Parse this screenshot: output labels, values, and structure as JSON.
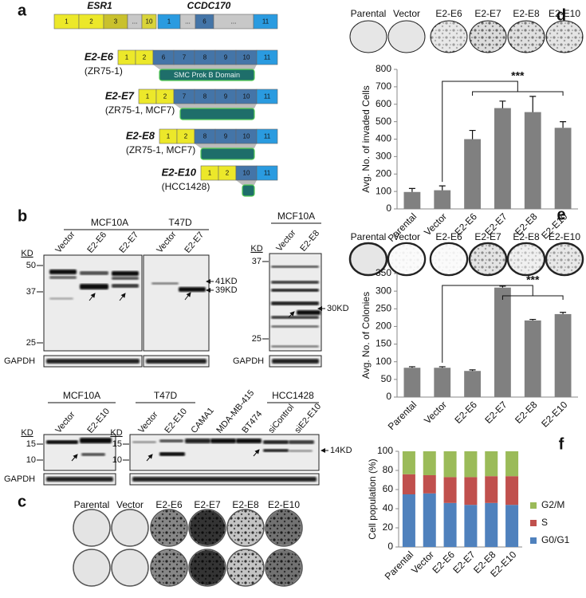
{
  "panels": {
    "a": {
      "letter": "a",
      "genes": [
        "ESR1",
        "CCDC170"
      ],
      "esr1_exons": [
        "1",
        "2",
        "3",
        "...",
        "10"
      ],
      "ccdc170_exons": [
        "1",
        "...",
        "6",
        "...",
        "11"
      ],
      "fusions": [
        {
          "name": "E2-E6",
          "cell_lines": "(ZR75-1)",
          "esr1_exons": [
            "1",
            "2"
          ],
          "ccdc170_exons": [
            "6",
            "7",
            "8",
            "9",
            "10",
            "11"
          ],
          "domain": "SMC Prok B Domain"
        },
        {
          "name": "E2-E7",
          "cell_lines": "(ZR75-1, MCF7)",
          "esr1_exons": [
            "1",
            "2"
          ],
          "ccdc170_exons": [
            "7",
            "8",
            "9",
            "10",
            "11"
          ]
        },
        {
          "name": "E2-E8",
          "cell_lines": "(ZR75-1, MCF7)",
          "esr1_exons": [
            "1",
            "2"
          ],
          "ccdc170_exons": [
            "8",
            "9",
            "10",
            "11"
          ]
        },
        {
          "name": "E2-E10",
          "cell_lines": "(HCC1428)",
          "esr1_exons": [
            "1",
            "2"
          ],
          "ccdc170_exons": [
            "10",
            "11"
          ]
        }
      ]
    },
    "b": {
      "letter": "b",
      "top": {
        "groups": [
          {
            "cell_line": "MCF10A",
            "lanes": [
              "Vector",
              "E2-E6",
              "E2-E7"
            ]
          },
          {
            "cell_line": "T47D",
            "lanes": [
              "Vector",
              "E2-E7"
            ]
          },
          {
            "cell_line": "MCF10A",
            "lanes": [
              "Vector",
              "E2-E8"
            ]
          }
        ],
        "markers_left": {
          "unit": "KD",
          "values": [
            50,
            37,
            25
          ]
        },
        "markers_right": {
          "unit": "KD",
          "values": [
            37,
            25
          ]
        },
        "band_labels": [
          "41KD",
          "39KD",
          "30KD"
        ],
        "loading_control": "GAPDH"
      },
      "bottom": {
        "groups": [
          {
            "cell_line": "MCF10A",
            "lanes": [
              "Vector",
              "E2-E10"
            ]
          },
          {
            "cell_line": "T47D",
            "lanes": [
              "Vector",
              "E2-E10"
            ]
          },
          {
            "lanes": [
              "CAMA1",
              "MDA-MB-415",
              "BT474"
            ]
          },
          {
            "cell_line": "HCC1428",
            "lanes": [
              "siControl",
              "siE2-E10"
            ]
          }
        ],
        "markers": {
          "unit": "KD",
          "values": [
            15,
            10
          ]
        },
        "band_labels": [
          "14KD"
        ],
        "loading_control": "GAPDH"
      }
    },
    "c": {
      "letter": "c",
      "labels": [
        "Parental",
        "Vector",
        "E2-E6",
        "E2-E7",
        "E2-E8",
        "E2-E10"
      ]
    },
    "d": {
      "letter": "d",
      "labels": [
        "Parental",
        "Vector",
        "E2-E6",
        "E2-E7",
        "E2-E8",
        "E2-E10"
      ]
    },
    "e": {
      "letter": "e",
      "labels": [
        "Parental",
        "Vector",
        "E2-E6",
        "E2-E7",
        "E2-E8",
        "E2-E10"
      ]
    },
    "f": {
      "letter": "f"
    }
  },
  "chart_data": [
    {
      "type": "bar",
      "y_label": "Avg. No. of invaded Cells",
      "categories": [
        "Parental",
        "Vector",
        "E2-E6",
        "E2-E7",
        "E2-E8",
        "E2-E10"
      ],
      "values": [
        97,
        107,
        400,
        578,
        555,
        465
      ],
      "errors": [
        20,
        25,
        50,
        40,
        90,
        35
      ],
      "color": "#808080",
      "ylim": [
        0,
        800
      ],
      "yticks": [
        0,
        100,
        200,
        300,
        400,
        500,
        600,
        700,
        800
      ],
      "annotation": "***"
    },
    {
      "type": "bar",
      "y_label": "Avg. No. of Colonies",
      "categories": [
        "Parental",
        "Vector",
        "E2-E6",
        "E2-E7",
        "E2-E8",
        "E2-E10"
      ],
      "values": [
        83,
        83,
        74,
        310,
        217,
        235
      ],
      "errors": [
        3,
        3,
        3,
        4,
        3,
        5
      ],
      "color": "#808080",
      "ylim": [
        0,
        350
      ],
      "yticks": [
        0,
        50,
        100,
        150,
        200,
        250,
        300,
        350
      ],
      "annotation": "***"
    },
    {
      "type": "stacked_bar",
      "y_label": "Cell population (%)",
      "categories": [
        "Parental",
        "Vector",
        "E2-E6",
        "E2-E7",
        "E2-E8",
        "E2-E10"
      ],
      "series": [
        {
          "name": "G0/G1",
          "color": "#4f81bd",
          "values": [
            55,
            56,
            46,
            44,
            46,
            44
          ]
        },
        {
          "name": "S",
          "color": "#c0504d",
          "values": [
            21,
            19,
            27,
            29,
            28,
            30
          ]
        },
        {
          "name": "G2/M",
          "color": "#9bbb59",
          "values": [
            24,
            25,
            27,
            27,
            26,
            26
          ]
        }
      ],
      "ylim": [
        0,
        100
      ],
      "yticks": [
        0,
        20,
        40,
        60,
        80,
        100
      ],
      "legend": "right"
    }
  ]
}
